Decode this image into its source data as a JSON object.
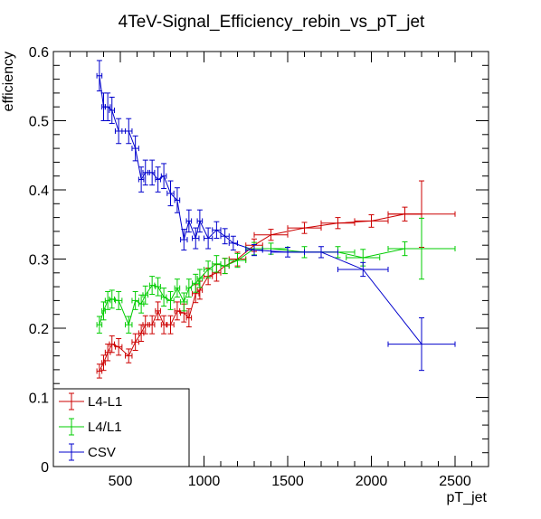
{
  "chart_data": {
    "type": "line",
    "title": "4TeV-Signal_Efficiency_rebin_vs_pT_jet",
    "xlabel": "pT_jet",
    "ylabel": "efficiency",
    "xlim": [
      100,
      2700
    ],
    "ylim": [
      0,
      0.6
    ],
    "x_ticks": [
      500,
      1000,
      1500,
      2000,
      2500
    ],
    "x_tick_labels": [
      "500",
      "1000",
      "1500",
      "2000",
      "2500"
    ],
    "y_ticks": [
      0,
      0.1,
      0.2,
      0.3,
      0.4,
      0.5,
      0.6
    ],
    "y_tick_labels": [
      "0",
      "0.1",
      "0.2",
      "0.3",
      "0.4",
      "0.5",
      "0.6"
    ],
    "grid": false,
    "legend_position": "bottom-left",
    "series": [
      {
        "name": "L4-L1",
        "color": "#cc0000",
        "points": [
          {
            "x": 375,
            "y": 0.138,
            "xerr": 15,
            "yerr": 0.01
          },
          {
            "x": 400,
            "y": 0.15,
            "xerr": 10,
            "yerr": 0.011
          },
          {
            "x": 425,
            "y": 0.165,
            "xerr": 15,
            "yerr": 0.012
          },
          {
            "x": 450,
            "y": 0.177,
            "xerr": 15,
            "yerr": 0.012
          },
          {
            "x": 490,
            "y": 0.173,
            "xerr": 20,
            "yerr": 0.012
          },
          {
            "x": 550,
            "y": 0.16,
            "xerr": 20,
            "yerr": 0.01
          },
          {
            "x": 590,
            "y": 0.18,
            "xerr": 20,
            "yerr": 0.012
          },
          {
            "x": 625,
            "y": 0.193,
            "xerr": 15,
            "yerr": 0.012
          },
          {
            "x": 650,
            "y": 0.205,
            "xerr": 15,
            "yerr": 0.013
          },
          {
            "x": 690,
            "y": 0.205,
            "xerr": 15,
            "yerr": 0.013
          },
          {
            "x": 725,
            "y": 0.225,
            "xerr": 15,
            "yerr": 0.013
          },
          {
            "x": 760,
            "y": 0.205,
            "xerr": 15,
            "yerr": 0.013
          },
          {
            "x": 800,
            "y": 0.205,
            "xerr": 20,
            "yerr": 0.013
          },
          {
            "x": 840,
            "y": 0.225,
            "xerr": 15,
            "yerr": 0.013
          },
          {
            "x": 880,
            "y": 0.222,
            "xerr": 20,
            "yerr": 0.013
          },
          {
            "x": 910,
            "y": 0.215,
            "xerr": 15,
            "yerr": 0.013
          },
          {
            "x": 950,
            "y": 0.25,
            "xerr": 20,
            "yerr": 0.013
          },
          {
            "x": 975,
            "y": 0.255,
            "xerr": 15,
            "yerr": 0.013
          },
          {
            "x": 1025,
            "y": 0.275,
            "xerr": 25,
            "yerr": 0.012
          },
          {
            "x": 1075,
            "y": 0.28,
            "xerr": 25,
            "yerr": 0.012
          },
          {
            "x": 1125,
            "y": 0.29,
            "xerr": 25,
            "yerr": 0.011
          },
          {
            "x": 1200,
            "y": 0.3,
            "xerr": 50,
            "yerr": 0.01
          },
          {
            "x": 1300,
            "y": 0.32,
            "xerr": 50,
            "yerr": 0.009
          },
          {
            "x": 1400,
            "y": 0.335,
            "xerr": 100,
            "yerr": 0.008
          },
          {
            "x": 1600,
            "y": 0.345,
            "xerr": 100,
            "yerr": 0.008
          },
          {
            "x": 1800,
            "y": 0.352,
            "xerr": 100,
            "yerr": 0.008
          },
          {
            "x": 2000,
            "y": 0.355,
            "xerr": 100,
            "yerr": 0.009
          },
          {
            "x": 2200,
            "y": 0.365,
            "xerr": 100,
            "yerr": 0.01
          },
          {
            "x": 2300,
            "y": 0.365,
            "xerr": 200,
            "yerr": 0.048
          }
        ]
      },
      {
        "name": "L4/L1",
        "color": "#00cc00",
        "points": [
          {
            "x": 375,
            "y": 0.205,
            "xerr": 15,
            "yerr": 0.012
          },
          {
            "x": 400,
            "y": 0.225,
            "xerr": 10,
            "yerr": 0.013
          },
          {
            "x": 425,
            "y": 0.24,
            "xerr": 15,
            "yerr": 0.013
          },
          {
            "x": 450,
            "y": 0.242,
            "xerr": 15,
            "yerr": 0.013
          },
          {
            "x": 490,
            "y": 0.24,
            "xerr": 20,
            "yerr": 0.013
          },
          {
            "x": 550,
            "y": 0.205,
            "xerr": 20,
            "yerr": 0.012
          },
          {
            "x": 590,
            "y": 0.24,
            "xerr": 20,
            "yerr": 0.013
          },
          {
            "x": 625,
            "y": 0.235,
            "xerr": 15,
            "yerr": 0.013
          },
          {
            "x": 650,
            "y": 0.248,
            "xerr": 15,
            "yerr": 0.013
          },
          {
            "x": 690,
            "y": 0.262,
            "xerr": 15,
            "yerr": 0.013
          },
          {
            "x": 725,
            "y": 0.26,
            "xerr": 15,
            "yerr": 0.013
          },
          {
            "x": 760,
            "y": 0.245,
            "xerr": 15,
            "yerr": 0.013
          },
          {
            "x": 800,
            "y": 0.24,
            "xerr": 20,
            "yerr": 0.013
          },
          {
            "x": 840,
            "y": 0.258,
            "xerr": 15,
            "yerr": 0.013
          },
          {
            "x": 880,
            "y": 0.238,
            "xerr": 20,
            "yerr": 0.013
          },
          {
            "x": 910,
            "y": 0.258,
            "xerr": 15,
            "yerr": 0.013
          },
          {
            "x": 950,
            "y": 0.265,
            "xerr": 20,
            "yerr": 0.013
          },
          {
            "x": 975,
            "y": 0.272,
            "xerr": 15,
            "yerr": 0.013
          },
          {
            "x": 1025,
            "y": 0.285,
            "xerr": 25,
            "yerr": 0.012
          },
          {
            "x": 1075,
            "y": 0.293,
            "xerr": 25,
            "yerr": 0.012
          },
          {
            "x": 1125,
            "y": 0.29,
            "xerr": 25,
            "yerr": 0.011
          },
          {
            "x": 1200,
            "y": 0.298,
            "xerr": 50,
            "yerr": 0.01
          },
          {
            "x": 1300,
            "y": 0.315,
            "xerr": 50,
            "yerr": 0.009
          },
          {
            "x": 1400,
            "y": 0.315,
            "xerr": 100,
            "yerr": 0.008
          },
          {
            "x": 1600,
            "y": 0.31,
            "xerr": 100,
            "yerr": 0.008
          },
          {
            "x": 1800,
            "y": 0.31,
            "xerr": 100,
            "yerr": 0.008
          },
          {
            "x": 1950,
            "y": 0.302,
            "xerr": 100,
            "yerr": 0.012
          },
          {
            "x": 2200,
            "y": 0.315,
            "xerr": 100,
            "yerr": 0.01
          },
          {
            "x": 2300,
            "y": 0.315,
            "xerr": 200,
            "yerr": 0.044
          }
        ]
      },
      {
        "name": "CSV",
        "color": "#0000cc",
        "points": [
          {
            "x": 375,
            "y": 0.565,
            "xerr": 15,
            "yerr": 0.022
          },
          {
            "x": 400,
            "y": 0.52,
            "xerr": 10,
            "yerr": 0.02
          },
          {
            "x": 425,
            "y": 0.52,
            "xerr": 15,
            "yerr": 0.02
          },
          {
            "x": 450,
            "y": 0.515,
            "xerr": 15,
            "yerr": 0.019
          },
          {
            "x": 490,
            "y": 0.485,
            "xerr": 20,
            "yerr": 0.018
          },
          {
            "x": 550,
            "y": 0.485,
            "xerr": 20,
            "yerr": 0.018
          },
          {
            "x": 590,
            "y": 0.46,
            "xerr": 20,
            "yerr": 0.018
          },
          {
            "x": 625,
            "y": 0.415,
            "xerr": 15,
            "yerr": 0.018
          },
          {
            "x": 650,
            "y": 0.425,
            "xerr": 15,
            "yerr": 0.018
          },
          {
            "x": 690,
            "y": 0.425,
            "xerr": 15,
            "yerr": 0.018
          },
          {
            "x": 725,
            "y": 0.415,
            "xerr": 15,
            "yerr": 0.018
          },
          {
            "x": 760,
            "y": 0.42,
            "xerr": 15,
            "yerr": 0.018
          },
          {
            "x": 800,
            "y": 0.395,
            "xerr": 20,
            "yerr": 0.018
          },
          {
            "x": 840,
            "y": 0.385,
            "xerr": 15,
            "yerr": 0.018
          },
          {
            "x": 880,
            "y": 0.328,
            "xerr": 20,
            "yerr": 0.015
          },
          {
            "x": 910,
            "y": 0.355,
            "xerr": 15,
            "yerr": 0.016
          },
          {
            "x": 950,
            "y": 0.33,
            "xerr": 20,
            "yerr": 0.015
          },
          {
            "x": 975,
            "y": 0.355,
            "xerr": 15,
            "yerr": 0.016
          },
          {
            "x": 1025,
            "y": 0.33,
            "xerr": 25,
            "yerr": 0.015
          },
          {
            "x": 1075,
            "y": 0.342,
            "xerr": 25,
            "yerr": 0.012
          },
          {
            "x": 1125,
            "y": 0.333,
            "xerr": 25,
            "yerr": 0.011
          },
          {
            "x": 1175,
            "y": 0.323,
            "xerr": 25,
            "yerr": 0.01
          },
          {
            "x": 1300,
            "y": 0.313,
            "xerr": 50,
            "yerr": 0.008
          },
          {
            "x": 1500,
            "y": 0.31,
            "xerr": 100,
            "yerr": 0.007
          },
          {
            "x": 1700,
            "y": 0.31,
            "xerr": 100,
            "yerr": 0.008
          },
          {
            "x": 1950,
            "y": 0.285,
            "xerr": 150,
            "yerr": 0.01
          },
          {
            "x": 2300,
            "y": 0.177,
            "xerr": 200,
            "yerr": 0.038
          }
        ]
      }
    ]
  }
}
